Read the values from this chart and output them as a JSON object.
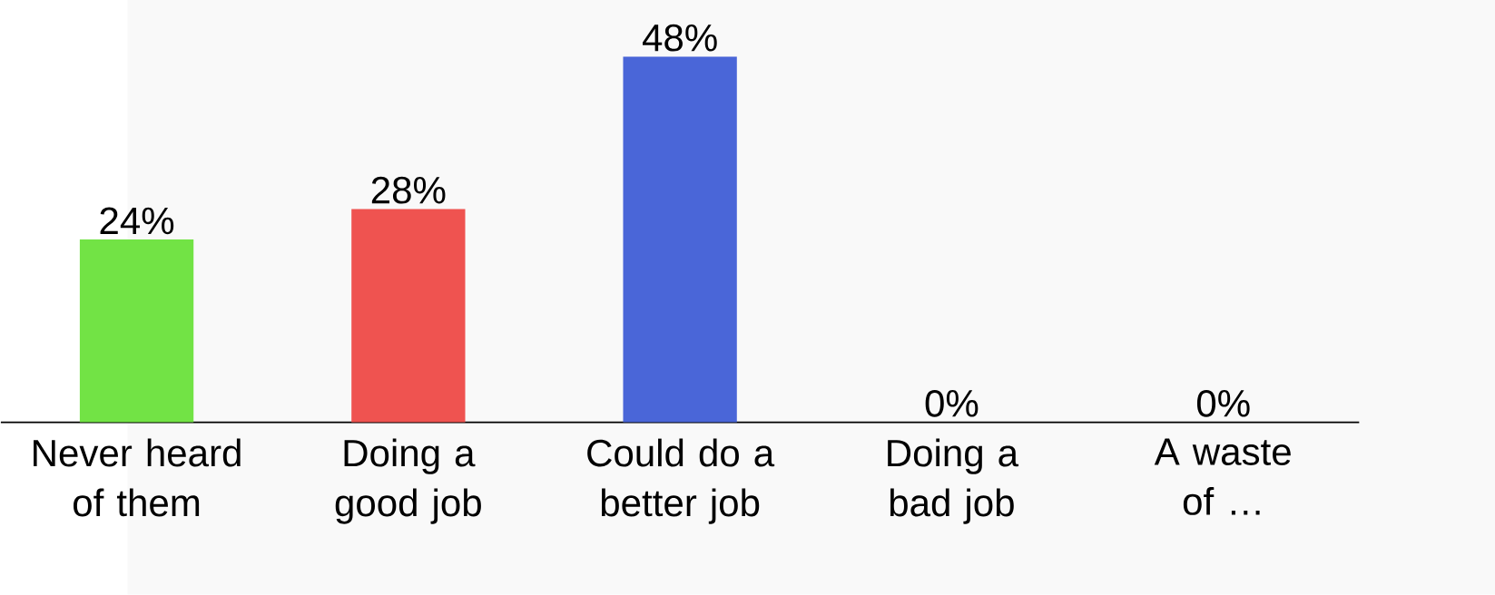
{
  "chart_data": {
    "type": "bar",
    "categories": [
      "Never heard of them",
      "Doing a good job",
      "Could do a better job",
      "Doing a bad job",
      "A waste of …"
    ],
    "values": [
      24,
      28,
      48,
      0,
      0
    ],
    "colors": [
      "#72e345",
      "#ef5350",
      "#4a66d8",
      "#9e9e9e",
      "#9e9e9e"
    ],
    "value_labels": [
      "24%",
      "28%",
      "48%",
      "0%",
      "0%"
    ]
  }
}
